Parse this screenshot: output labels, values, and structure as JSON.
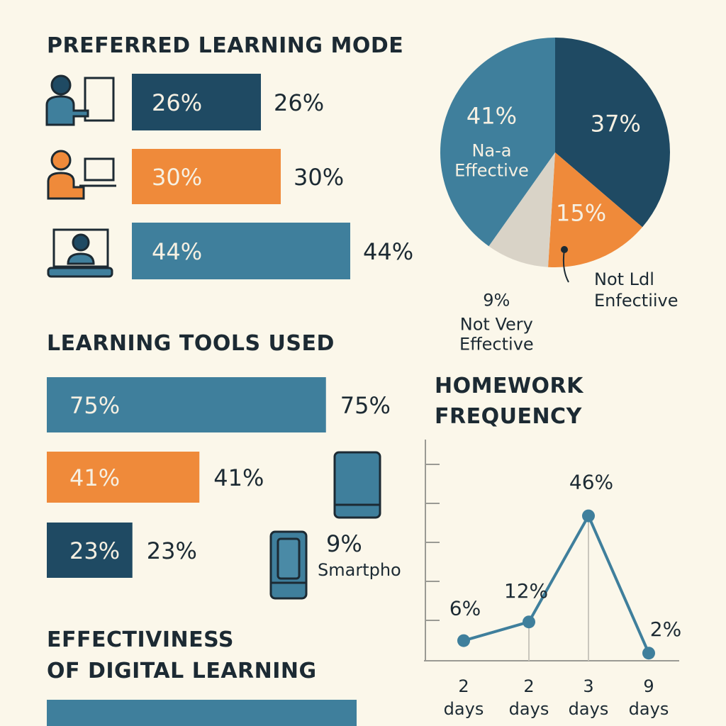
{
  "chart_data": [
    {
      "type": "hbar",
      "title": "PREFERRED LEARNING MODE",
      "values": [
        26,
        30,
        44
      ],
      "value_labels": [
        "26%",
        "30%",
        "44%"
      ],
      "colors": [
        "#1f4a63",
        "#ef8a3a",
        "#3f7f9c"
      ]
    },
    {
      "type": "pie",
      "categories": [
        null,
        null,
        "Not Very\nEffective",
        "Na-a\nEffective"
      ],
      "values": [
        37,
        15,
        9,
        41
      ],
      "value_labels": [
        "37%",
        "15%",
        "9%",
        "41%"
      ],
      "colors": [
        "#1f4a63",
        "#ef8a3a",
        "#d9d3c7",
        "#3f7f9c"
      ],
      "annotations": [
        "Not Ldl\nEnfectiive"
      ]
    },
    {
      "type": "hbar",
      "title": "LEARNING TOOLS USED",
      "values": [
        75,
        41,
        23
      ],
      "value_labels": [
        "75%",
        "41%",
        "23%"
      ],
      "colors": [
        "#3f7f9c",
        "#ef8a3a",
        "#1f4a63"
      ],
      "annotations": [
        "9%",
        "Smartpho"
      ]
    },
    {
      "type": "line",
      "title": "HOMEWORK\nFREQUENCY",
      "categories": [
        "2\ndays",
        "2\ndays",
        "3\ndays",
        "9\ndays"
      ],
      "values": [
        6,
        12,
        46,
        2
      ],
      "value_labels": [
        "6%",
        "12%",
        "46%",
        "2%"
      ],
      "color": "#3f7f9c"
    },
    {
      "type": "bar",
      "title": "EFFECTIVINESS\nOF DIGITAL LEARNING"
    }
  ]
}
